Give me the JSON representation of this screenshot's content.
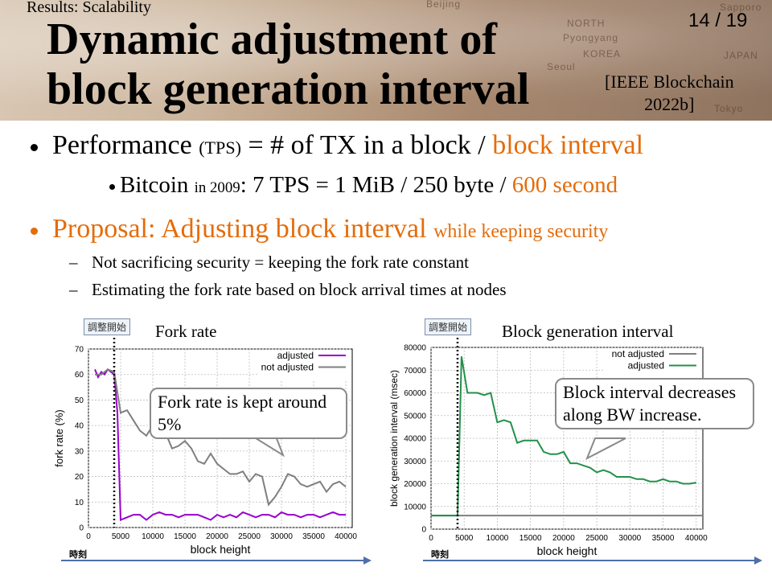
{
  "header": {
    "section_label": "Results: Scalability",
    "page_number": "14 / 19",
    "title_line1": "Dynamic adjustment of",
    "title_line2": "block generation interval",
    "citation_line1": "[IEEE Blockchain",
    "citation_line2": "2022b]",
    "map_labels": [
      "Beijing",
      "NORTH",
      "Pyongyang",
      "KOREA",
      "Seoul",
      "JAPAN",
      "Tokyo",
      "Sapporo"
    ]
  },
  "bullets": {
    "b1_main": "Performance",
    "b1_small": "(TPS)",
    "b1_rest": "= # of TX in a block /",
    "b1_orange": "block interval",
    "b2_main": "Bitcoin",
    "b2_small": "in 2009",
    "b2_rest": ": 7 TPS = 1 MiB / 250 byte /",
    "b2_orange": "600 second",
    "b3_main": "Proposal: Adjusting block interval",
    "b3_small": "while keeping security",
    "d1": "Not sacrificing security = keeping the fork rate constant",
    "d2": "Estimating the fork rate based on block arrival times at nodes",
    "dash": "–"
  },
  "colors": {
    "orange": "#e46c0a",
    "adjusted_left": "#9900cc",
    "not_adjusted": "#7f7f7f",
    "adjusted_right": "#22914a"
  },
  "chart_data": [
    {
      "type": "line",
      "caption": "Fork rate",
      "start_tag": "調整開始",
      "time_label": "時刻",
      "xlabel": "block height",
      "ylabel": "fork rate (%)",
      "xlim": [
        0,
        41000
      ],
      "ylim": [
        0,
        70
      ],
      "xticks": [
        0,
        5000,
        10000,
        15000,
        20000,
        25000,
        30000,
        35000,
        40000
      ],
      "yticks": [
        0,
        10,
        20,
        30,
        40,
        50,
        60,
        70
      ],
      "start_x": 4000,
      "legend_position": "top-right",
      "callout": "Fork rate is kept around 5%",
      "series": [
        {
          "name": "adjusted",
          "color": "#9900cc",
          "points": [
            [
              1000,
              62
            ],
            [
              1500,
              59
            ],
            [
              2000,
              61
            ],
            [
              2500,
              60
            ],
            [
              3000,
              62
            ],
            [
              3500,
              61
            ],
            [
              4000,
              60
            ],
            [
              4500,
              45
            ],
            [
              5000,
              3
            ],
            [
              6000,
              4
            ],
            [
              7000,
              5
            ],
            [
              8000,
              5
            ],
            [
              9000,
              3
            ],
            [
              10000,
              5
            ],
            [
              11000,
              6
            ],
            [
              12000,
              5
            ],
            [
              13000,
              5
            ],
            [
              14000,
              4
            ],
            [
              15000,
              5
            ],
            [
              16000,
              5
            ],
            [
              17000,
              5
            ],
            [
              18000,
              4
            ],
            [
              19000,
              3
            ],
            [
              20000,
              5
            ],
            [
              21000,
              4
            ],
            [
              22000,
              5
            ],
            [
              23000,
              4
            ],
            [
              24000,
              6
            ],
            [
              25000,
              5
            ],
            [
              26000,
              4
            ],
            [
              27000,
              5
            ],
            [
              28000,
              5
            ],
            [
              29000,
              4
            ],
            [
              30000,
              6
            ],
            [
              31000,
              5
            ],
            [
              32000,
              5
            ],
            [
              33000,
              4
            ],
            [
              34000,
              5
            ],
            [
              35000,
              5
            ],
            [
              36000,
              4
            ],
            [
              37000,
              5
            ],
            [
              38000,
              6
            ],
            [
              39000,
              5
            ],
            [
              40000,
              5
            ]
          ]
        },
        {
          "name": "not adjusted",
          "color": "#7f7f7f",
          "points": [
            [
              1000,
              60
            ],
            [
              2000,
              60
            ],
            [
              3000,
              62
            ],
            [
              4000,
              61
            ],
            [
              5000,
              45
            ],
            [
              6000,
              46
            ],
            [
              7000,
              42
            ],
            [
              8000,
              38
            ],
            [
              9000,
              36
            ],
            [
              10000,
              40
            ],
            [
              11000,
              38
            ],
            [
              12000,
              37
            ],
            [
              13000,
              31
            ],
            [
              14000,
              32
            ],
            [
              15000,
              34
            ],
            [
              16000,
              31
            ],
            [
              17000,
              26
            ],
            [
              18000,
              25
            ],
            [
              19000,
              29
            ],
            [
              20000,
              25
            ],
            [
              21000,
              23
            ],
            [
              22000,
              21
            ],
            [
              23000,
              21
            ],
            [
              24000,
              22
            ],
            [
              25000,
              18
            ],
            [
              26000,
              21
            ],
            [
              27000,
              20
            ],
            [
              28000,
              9
            ],
            [
              29000,
              12
            ],
            [
              30000,
              16
            ],
            [
              31000,
              21
            ],
            [
              32000,
              20
            ],
            [
              33000,
              17
            ],
            [
              34000,
              16
            ],
            [
              35000,
              17
            ],
            [
              36000,
              18
            ],
            [
              37000,
              14
            ],
            [
              38000,
              17
            ],
            [
              39000,
              18
            ],
            [
              40000,
              16
            ]
          ]
        }
      ]
    },
    {
      "type": "line",
      "caption": "Block generation interval",
      "start_tag": "調整開始",
      "time_label": "時刻",
      "xlabel": "block height",
      "ylabel": "block generation interval (msec)",
      "xlim": [
        0,
        41000
      ],
      "ylim": [
        0,
        80000
      ],
      "xticks": [
        0,
        5000,
        10000,
        15000,
        20000,
        25000,
        30000,
        35000,
        40000
      ],
      "yticks": [
        0,
        10000,
        20000,
        30000,
        40000,
        50000,
        60000,
        70000,
        80000
      ],
      "start_x": 4000,
      "legend_position": "top-right",
      "callout": "Block interval decreases along BW increase.",
      "series": [
        {
          "name": "not adjusted",
          "color": "#7f7f7f",
          "points": [
            [
              0,
              6000
            ],
            [
              41000,
              6000
            ]
          ]
        },
        {
          "name": "adjusted",
          "color": "#22914a",
          "points": [
            [
              0,
              6000
            ],
            [
              4000,
              6000
            ],
            [
              4600,
              76000
            ],
            [
              5500,
              60000
            ],
            [
              7000,
              60000
            ],
            [
              8000,
              59000
            ],
            [
              9000,
              60000
            ],
            [
              10000,
              47000
            ],
            [
              11000,
              48000
            ],
            [
              12000,
              47000
            ],
            [
              13000,
              38000
            ],
            [
              14000,
              39000
            ],
            [
              15000,
              39000
            ],
            [
              16000,
              39000
            ],
            [
              17000,
              34000
            ],
            [
              18000,
              33000
            ],
            [
              19000,
              33000
            ],
            [
              20000,
              34000
            ],
            [
              21000,
              29000
            ],
            [
              22000,
              29000
            ],
            [
              23000,
              28000
            ],
            [
              24000,
              27000
            ],
            [
              25000,
              25000
            ],
            [
              26000,
              26000
            ],
            [
              27000,
              25000
            ],
            [
              28000,
              23000
            ],
            [
              29000,
              23000
            ],
            [
              30000,
              23000
            ],
            [
              31000,
              22000
            ],
            [
              32000,
              22000
            ],
            [
              33000,
              21000
            ],
            [
              34000,
              21000
            ],
            [
              35000,
              22000
            ],
            [
              36000,
              21000
            ],
            [
              37000,
              21000
            ],
            [
              38000,
              20000
            ],
            [
              39000,
              20000
            ],
            [
              40000,
              20500
            ]
          ]
        }
      ]
    }
  ]
}
